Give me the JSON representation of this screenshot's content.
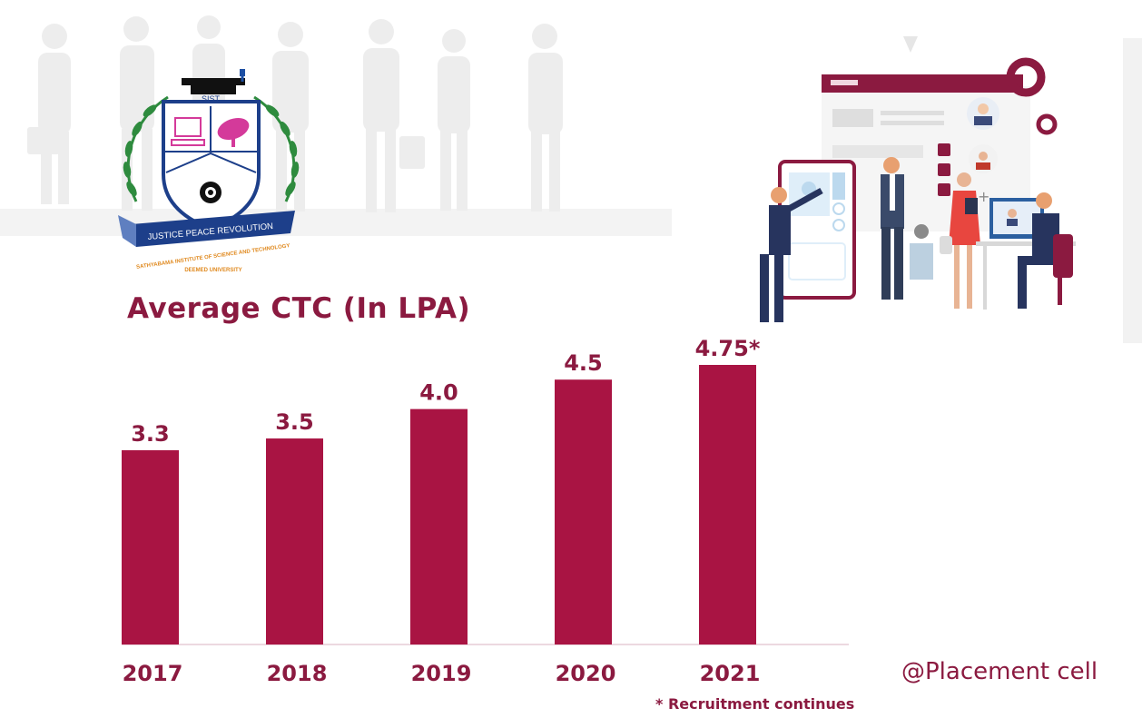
{
  "logo": {
    "acronym": "SIST",
    "motto": "JUSTICE PEACE REVOLUTION",
    "institution": "SATHYABAMA INSTITUTE OF SCIENCE AND TECHNOLOGY",
    "status": "DEEMED UNIVERSITY"
  },
  "colors": {
    "bar": "#a91443",
    "text": "#8b1a40"
  },
  "chart_data": {
    "type": "bar",
    "title": "Average CTC (In LPA)",
    "categories": [
      "2017",
      "2018",
      "2019",
      "2020",
      "2021"
    ],
    "values": [
      3.3,
      3.5,
      4.0,
      4.5,
      4.75
    ],
    "value_labels": [
      "3.3",
      "3.5",
      "4.0",
      "4.5",
      "4.75*"
    ],
    "xlabel": "",
    "ylabel": "",
    "ylim": [
      0,
      4.75
    ],
    "grid": false
  },
  "footnote": "* Recruitment continues",
  "handle": "@Placement cell"
}
